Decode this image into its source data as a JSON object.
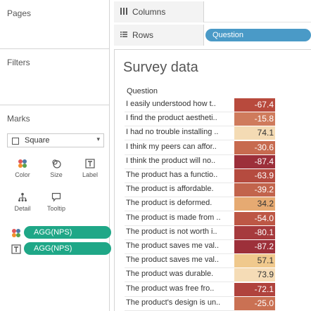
{
  "left_panel": {
    "pages_title": "Pages",
    "filters_title": "Filters",
    "marks_title": "Marks",
    "mark_type": "Square",
    "buttons": {
      "color": "Color",
      "size": "Size",
      "label": "Label",
      "detail": "Detail",
      "tooltip": "Tooltip"
    },
    "pills": [
      {
        "icon": "color-dots-icon",
        "label": "AGG(NPS)"
      },
      {
        "icon": "text-t-icon",
        "label": "AGG(NPS)"
      }
    ]
  },
  "shelves": {
    "columns_label": "Columns",
    "rows_label": "Rows",
    "rows_pill": "Question"
  },
  "viz": {
    "title": "Survey data",
    "header": "Question",
    "rows": [
      {
        "question": "I easily understood how t..",
        "value": "-67.4",
        "color": "#b84a3d",
        "text_color": "#ffffff"
      },
      {
        "question": "I find the product aestheti..",
        "value": "-15.8",
        "color": "#cf7b5c",
        "text_color": "#ffffff"
      },
      {
        "question": "I had no trouble installing ..",
        "value": "74.1",
        "color": "#f4dbb4",
        "text_color": "#333333"
      },
      {
        "question": "I think my peers can affor..",
        "value": "-30.6",
        "color": "#c76a4f",
        "text_color": "#ffffff"
      },
      {
        "question": "I think the product will no..",
        "value": "-87.4",
        "color": "#9c2f3a",
        "text_color": "#ffffff"
      },
      {
        "question": "The product has a functio..",
        "value": "-63.9",
        "color": "#b54b3f",
        "text_color": "#ffffff"
      },
      {
        "question": "The product is affordable.",
        "value": "-39.2",
        "color": "#c2644c",
        "text_color": "#ffffff"
      },
      {
        "question": "The product is deformed.",
        "value": "34.2",
        "color": "#e6aa72",
        "text_color": "#333333"
      },
      {
        "question": "The product is made from ..",
        "value": "-54.0",
        "color": "#bd5745",
        "text_color": "#ffffff"
      },
      {
        "question": "The product is not worth i..",
        "value": "-80.1",
        "color": "#a63a3d",
        "text_color": "#ffffff"
      },
      {
        "question": "The product saves me val..",
        "value": "-87.2",
        "color": "#9d303a",
        "text_color": "#ffffff"
      },
      {
        "question": "The product saves me val..",
        "value": "57.1",
        "color": "#f0c98d",
        "text_color": "#333333"
      },
      {
        "question": "The product was durable.",
        "value": "73.9",
        "color": "#f5dcb6",
        "text_color": "#333333"
      },
      {
        "question": "The product was free fro..",
        "value": "-72.1",
        "color": "#b0433d",
        "text_color": "#ffffff"
      },
      {
        "question": "The product's design is un..",
        "value": "-25.0",
        "color": "#ca7153",
        "text_color": "#ffffff"
      }
    ]
  },
  "colors": {
    "pill_green": "#1fa787",
    "pill_blue": "#4a9ac7"
  }
}
